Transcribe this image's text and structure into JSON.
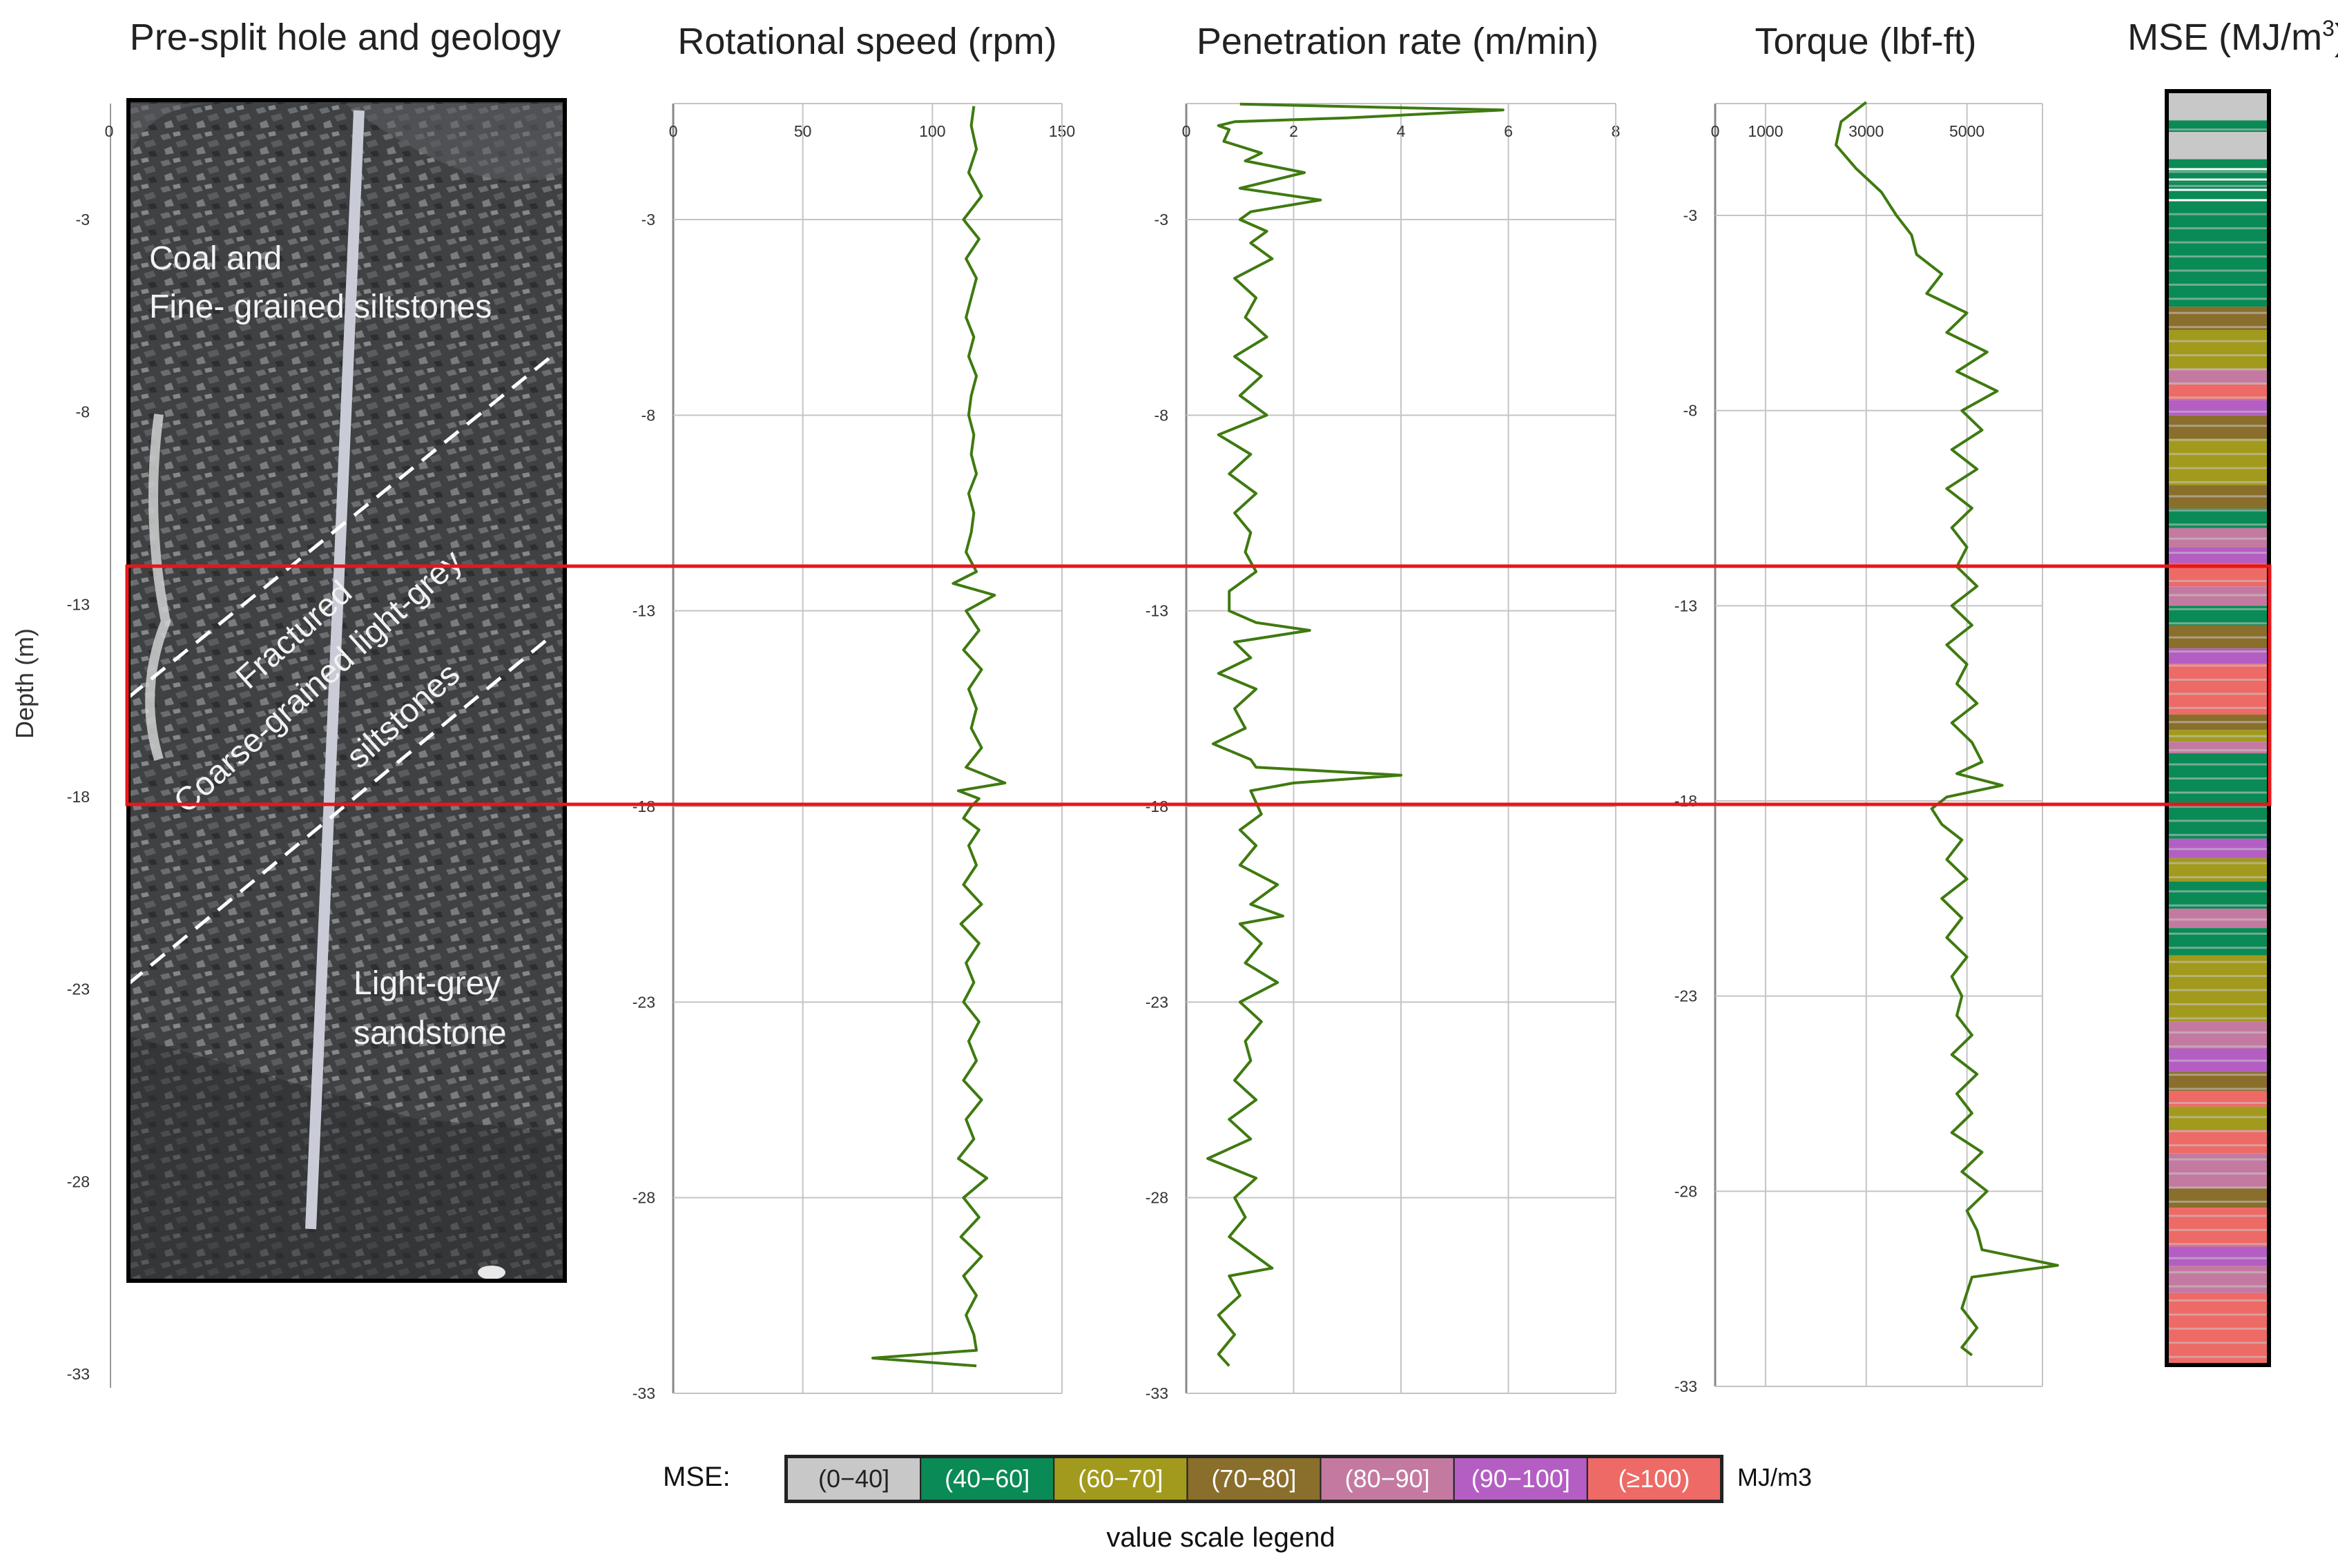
{
  "figure": {
    "depth_axis_label": "Depth (m)",
    "highlight_depth_range_m": [
      -12,
      -18
    ]
  },
  "geology_panel": {
    "title": "Pre-split hole and geology",
    "x_tick": "0",
    "depth_ticks": [
      -3,
      -8,
      -13,
      -18,
      -23,
      -28,
      -33
    ],
    "units": {
      "coal": "Coal and",
      "fine": "Fine- grained siltstones",
      "fractured": "Fractured",
      "coarse": "Coarse-grained light-grey",
      "siltstones": "siltstones",
      "sand1": "Light-grey",
      "sand2": "sandstone"
    }
  },
  "chart_data": [
    {
      "type": "line",
      "title": "Rotational speed (rpm)",
      "xlim": [
        0,
        150
      ],
      "xticks": [
        0,
        50,
        100,
        150
      ],
      "ylim": [
        -33,
        0
      ],
      "yticks": [
        -3,
        -8,
        -13,
        -18,
        -23,
        -28,
        -33
      ],
      "series": [
        {
          "name": "Rotational speed",
          "depth": [
            -0.1,
            -0.6,
            -1.2,
            -1.8,
            -2.4,
            -3.0,
            -3.5,
            -4.0,
            -4.5,
            -5.0,
            -5.5,
            -6.0,
            -6.5,
            -7.0,
            -7.5,
            -8.0,
            -8.5,
            -9.0,
            -9.5,
            -10.0,
            -10.5,
            -11.0,
            -11.5,
            -12.0,
            -12.3,
            -12.6,
            -13.0,
            -13.5,
            -14.0,
            -14.5,
            -15.0,
            -15.5,
            -16.0,
            -16.5,
            -17.0,
            -17.4,
            -17.6,
            -17.8,
            -18.0,
            -18.3,
            -18.6,
            -19.0,
            -19.5,
            -20.0,
            -20.5,
            -21.0,
            -21.5,
            -22.0,
            -22.5,
            -23.0,
            -23.5,
            -24.0,
            -24.5,
            -25.0,
            -25.5,
            -26.0,
            -26.5,
            -27.0,
            -27.5,
            -28.0,
            -28.5,
            -29.0,
            -29.5,
            -30.0,
            -30.5,
            -31.0,
            -31.5,
            -31.9,
            -32.1,
            -32.3
          ],
          "values": [
            116,
            115,
            117,
            114,
            119,
            112,
            118,
            113,
            117,
            115,
            113,
            116,
            114,
            117,
            115,
            114,
            116,
            115,
            117,
            114,
            116,
            115,
            113,
            117,
            108,
            124,
            113,
            118,
            112,
            119,
            114,
            117,
            115,
            119,
            113,
            128,
            110,
            118,
            115,
            112,
            118,
            114,
            117,
            112,
            119,
            111,
            118,
            113,
            116,
            112,
            118,
            114,
            117,
            112,
            119,
            113,
            116,
            110,
            121,
            112,
            118,
            111,
            119,
            112,
            117,
            113,
            116,
            117,
            77,
            117
          ]
        }
      ]
    },
    {
      "type": "line",
      "title": "Penetration rate (m/min)",
      "xlim": [
        0,
        8
      ],
      "xticks": [
        0,
        2,
        4,
        6,
        8
      ],
      "ylim": [
        -33,
        0
      ],
      "yticks": [
        -3,
        -8,
        -13,
        -18,
        -23,
        -28,
        -33
      ],
      "series": [
        {
          "name": "Penetration rate",
          "depth": [
            -0.05,
            -0.2,
            -0.4,
            -0.5,
            -0.6,
            -0.7,
            -1.0,
            -1.3,
            -1.5,
            -1.8,
            -2.0,
            -2.2,
            -2.5,
            -2.8,
            -3.0,
            -3.3,
            -3.6,
            -4.0,
            -4.5,
            -5.0,
            -5.5,
            -6.0,
            -6.5,
            -7.0,
            -7.5,
            -8.0,
            -8.5,
            -9.0,
            -9.5,
            -10.0,
            -10.5,
            -11.0,
            -11.5,
            -12.0,
            -12.5,
            -13.0,
            -13.3,
            -13.5,
            -13.8,
            -14.2,
            -14.6,
            -15.0,
            -15.5,
            -16.0,
            -16.4,
            -16.8,
            -17.0,
            -17.2,
            -17.4,
            -17.6,
            -17.9,
            -18.2,
            -18.6,
            -19.0,
            -19.5,
            -20.0,
            -20.5,
            -20.8,
            -21.0,
            -21.5,
            -22.0,
            -22.5,
            -23.0,
            -23.5,
            -24.0,
            -24.5,
            -25.0,
            -25.5,
            -26.0,
            -26.5,
            -27.0,
            -27.5,
            -28.0,
            -28.5,
            -29.0,
            -29.5,
            -29.8,
            -30.0,
            -30.5,
            -31.0,
            -31.5,
            -32.0,
            -32.3
          ],
          "values": [
            1.0,
            5.9,
            3.0,
            0.9,
            0.6,
            0.8,
            0.7,
            1.4,
            1.1,
            2.2,
            1.6,
            1.0,
            2.5,
            1.2,
            1.0,
            1.5,
            1.2,
            1.6,
            0.9,
            1.3,
            1.1,
            1.5,
            0.9,
            1.4,
            1.0,
            1.5,
            0.6,
            1.2,
            0.8,
            1.3,
            0.9,
            1.2,
            1.1,
            1.3,
            0.8,
            0.8,
            1.3,
            2.3,
            0.9,
            1.2,
            0.6,
            1.3,
            0.9,
            1.1,
            0.5,
            1.2,
            1.3,
            4.0,
            2.0,
            1.2,
            1.3,
            1.4,
            1.0,
            1.3,
            1.0,
            1.7,
            1.2,
            1.8,
            1.0,
            1.4,
            1.1,
            1.7,
            1.0,
            1.4,
            1.1,
            1.2,
            0.9,
            1.3,
            0.8,
            1.2,
            0.4,
            1.3,
            0.9,
            1.1,
            0.8,
            1.3,
            1.6,
            0.8,
            1.0,
            0.6,
            0.9,
            0.6,
            0.8
          ]
        }
      ]
    },
    {
      "type": "line",
      "title": "Torque (lbf-ft)",
      "xlim": [
        0,
        6500
      ],
      "xticks": [
        0,
        1000,
        3000,
        5000
      ],
      "ylim": [
        -33,
        0
      ],
      "yticks": [
        -3,
        -8,
        -13,
        -18,
        -23,
        -28,
        -33
      ],
      "series": [
        {
          "name": "Torque",
          "depth": [
            -0.1,
            -0.6,
            -1.2,
            -1.8,
            -2.4,
            -3.0,
            -3.5,
            -4.0,
            -4.5,
            -5.0,
            -5.5,
            -6.0,
            -6.5,
            -7.0,
            -7.5,
            -8.0,
            -8.5,
            -9.0,
            -9.5,
            -10.0,
            -10.5,
            -11.0,
            -11.5,
            -12.0,
            -12.5,
            -13.0,
            -13.5,
            -14.0,
            -14.5,
            -15.0,
            -15.5,
            -16.0,
            -16.5,
            -17.0,
            -17.3,
            -17.6,
            -17.9,
            -18.2,
            -18.6,
            -19.0,
            -19.5,
            -20.0,
            -20.5,
            -21.0,
            -21.5,
            -22.0,
            -22.5,
            -23.0,
            -23.5,
            -24.0,
            -24.5,
            -25.0,
            -25.5,
            -26.0,
            -26.5,
            -27.0,
            -27.5,
            -28.0,
            -28.5,
            -29.0,
            -29.5,
            -29.9,
            -30.2,
            -30.6,
            -31.0,
            -31.5,
            -32.0,
            -32.2
          ],
          "values": [
            3000,
            2500,
            2400,
            2800,
            3300,
            3600,
            3900,
            4000,
            4500,
            4200,
            5000,
            4600,
            5400,
            4800,
            5600,
            4900,
            5300,
            4700,
            5200,
            4600,
            5100,
            4700,
            5000,
            4800,
            5200,
            4700,
            5100,
            4600,
            5000,
            4800,
            5200,
            4700,
            5100,
            5300,
            4800,
            5700,
            4600,
            4300,
            4500,
            4900,
            4600,
            5000,
            4500,
            4900,
            4600,
            5000,
            4700,
            4900,
            4800,
            5100,
            4700,
            5200,
            4800,
            5100,
            4700,
            5300,
            4900,
            5400,
            5000,
            5200,
            5300,
            6800,
            5100,
            5000,
            4900,
            5200,
            4900,
            5100
          ]
        }
      ]
    }
  ],
  "mse_column": {
    "title": "MSE (MJ/m",
    "title_sup": "3",
    "title_end": ")",
    "top_depth_m": -0.3,
    "bottom_depth_m": -33,
    "bands": [
      {
        "to": -1.0,
        "cls": 0
      },
      {
        "to": -1.3,
        "cls": 1
      },
      {
        "to": -2.0,
        "cls": 0
      },
      {
        "to": -2.6,
        "cls": 1
      },
      {
        "to": -5.8,
        "cls": 1
      },
      {
        "to": -6.4,
        "cls": 3
      },
      {
        "to": -7.4,
        "cls": 2
      },
      {
        "to": -7.8,
        "cls": 4
      },
      {
        "to": -8.2,
        "cls": 6
      },
      {
        "to": -8.6,
        "cls": 5
      },
      {
        "to": -9.2,
        "cls": 3
      },
      {
        "to": -10.4,
        "cls": 2
      },
      {
        "to": -11.0,
        "cls": 3
      },
      {
        "to": -11.5,
        "cls": 1
      },
      {
        "to": -12.0,
        "cls": 4
      },
      {
        "to": -12.4,
        "cls": 5
      },
      {
        "to": -13.0,
        "cls": 6
      },
      {
        "to": -13.5,
        "cls": 4
      },
      {
        "to": -14.0,
        "cls": 1
      },
      {
        "to": -14.6,
        "cls": 3
      },
      {
        "to": -15.0,
        "cls": 5
      },
      {
        "to": -16.3,
        "cls": 6
      },
      {
        "to": -16.7,
        "cls": 3
      },
      {
        "to": -17.0,
        "cls": 2
      },
      {
        "to": -17.3,
        "cls": 4
      },
      {
        "to": -18.3,
        "cls": 1
      },
      {
        "to": -19.5,
        "cls": 1
      },
      {
        "to": -20.0,
        "cls": 5
      },
      {
        "to": -20.6,
        "cls": 2
      },
      {
        "to": -21.3,
        "cls": 1
      },
      {
        "to": -21.8,
        "cls": 4
      },
      {
        "to": -22.5,
        "cls": 1
      },
      {
        "to": -24.2,
        "cls": 2
      },
      {
        "to": -24.9,
        "cls": 4
      },
      {
        "to": -25.5,
        "cls": 5
      },
      {
        "to": -26.0,
        "cls": 3
      },
      {
        "to": -26.4,
        "cls": 6
      },
      {
        "to": -27.0,
        "cls": 2
      },
      {
        "to": -27.6,
        "cls": 6
      },
      {
        "to": -28.5,
        "cls": 4
      },
      {
        "to": -29.0,
        "cls": 3
      },
      {
        "to": -30.0,
        "cls": 6
      },
      {
        "to": -30.5,
        "cls": 5
      },
      {
        "to": -31.2,
        "cls": 4
      },
      {
        "to": -33.0,
        "cls": 6
      }
    ]
  },
  "legend": {
    "label": "MSE:",
    "unit": "MJ/m3",
    "caption": "value scale legend",
    "classes": [
      {
        "label": "(0−40]",
        "color": "#c8c8c8",
        "text_color": "#222222"
      },
      {
        "label": "(40−60]",
        "color": "#0a8a55",
        "text_color": "#ffffff"
      },
      {
        "label": "(60−70]",
        "color": "#a29a1c",
        "text_color": "#ffffff"
      },
      {
        "label": "(70−80]",
        "color": "#8a6e2c",
        "text_color": "#ffffff"
      },
      {
        "label": "(80−90]",
        "color": "#c47aa0",
        "text_color": "#ffffff"
      },
      {
        "label": "(90−100]",
        "color": "#b45ec4",
        "text_color": "#ffffff"
      },
      {
        "label": "(≥100)",
        "color": "#ee6a66",
        "text_color": "#ffffff"
      }
    ]
  },
  "colors": {
    "line": "#3f7a10",
    "grid": "#c4c4c4",
    "highlight": "#e8161b",
    "rock_bg": "#3f4143"
  }
}
